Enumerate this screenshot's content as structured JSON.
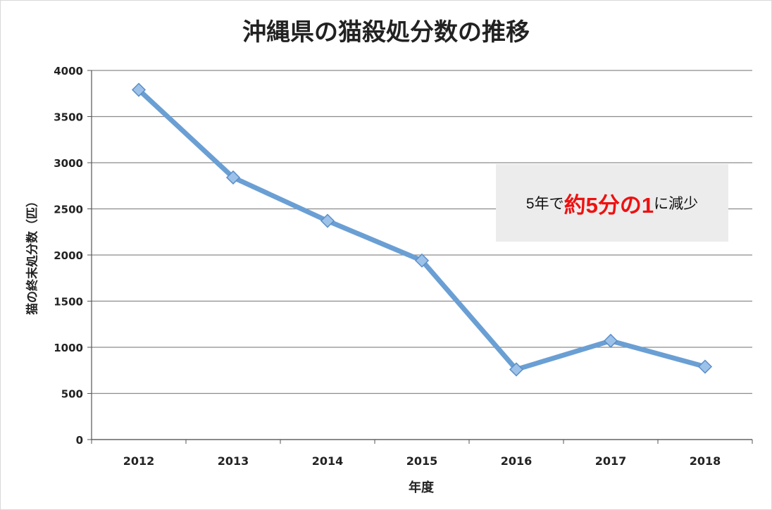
{
  "chart_data": {
    "type": "line",
    "title": "沖縄県の猫殺処分数の推移",
    "xlabel": "年度",
    "ylabel": "猫の終末処分数（匹）",
    "categories": [
      "2012",
      "2013",
      "2014",
      "2015",
      "2016",
      "2017",
      "2018"
    ],
    "series": [
      {
        "values": [
          3790,
          2840,
          2370,
          1940,
          760,
          1070,
          790
        ]
      }
    ],
    "ylim": [
      0,
      4000
    ],
    "yticks": [
      "0",
      "500",
      "1000",
      "1500",
      "2000",
      "2500",
      "3000",
      "3500",
      "4000"
    ],
    "grid": true,
    "line_color": "#6a9fd4",
    "marker_color": "#9cc2ea",
    "annotation": {
      "part1": "5年で",
      "part2": "約5分の1",
      "part3": "に減少",
      "highlight_color": "#ee1111"
    }
  }
}
